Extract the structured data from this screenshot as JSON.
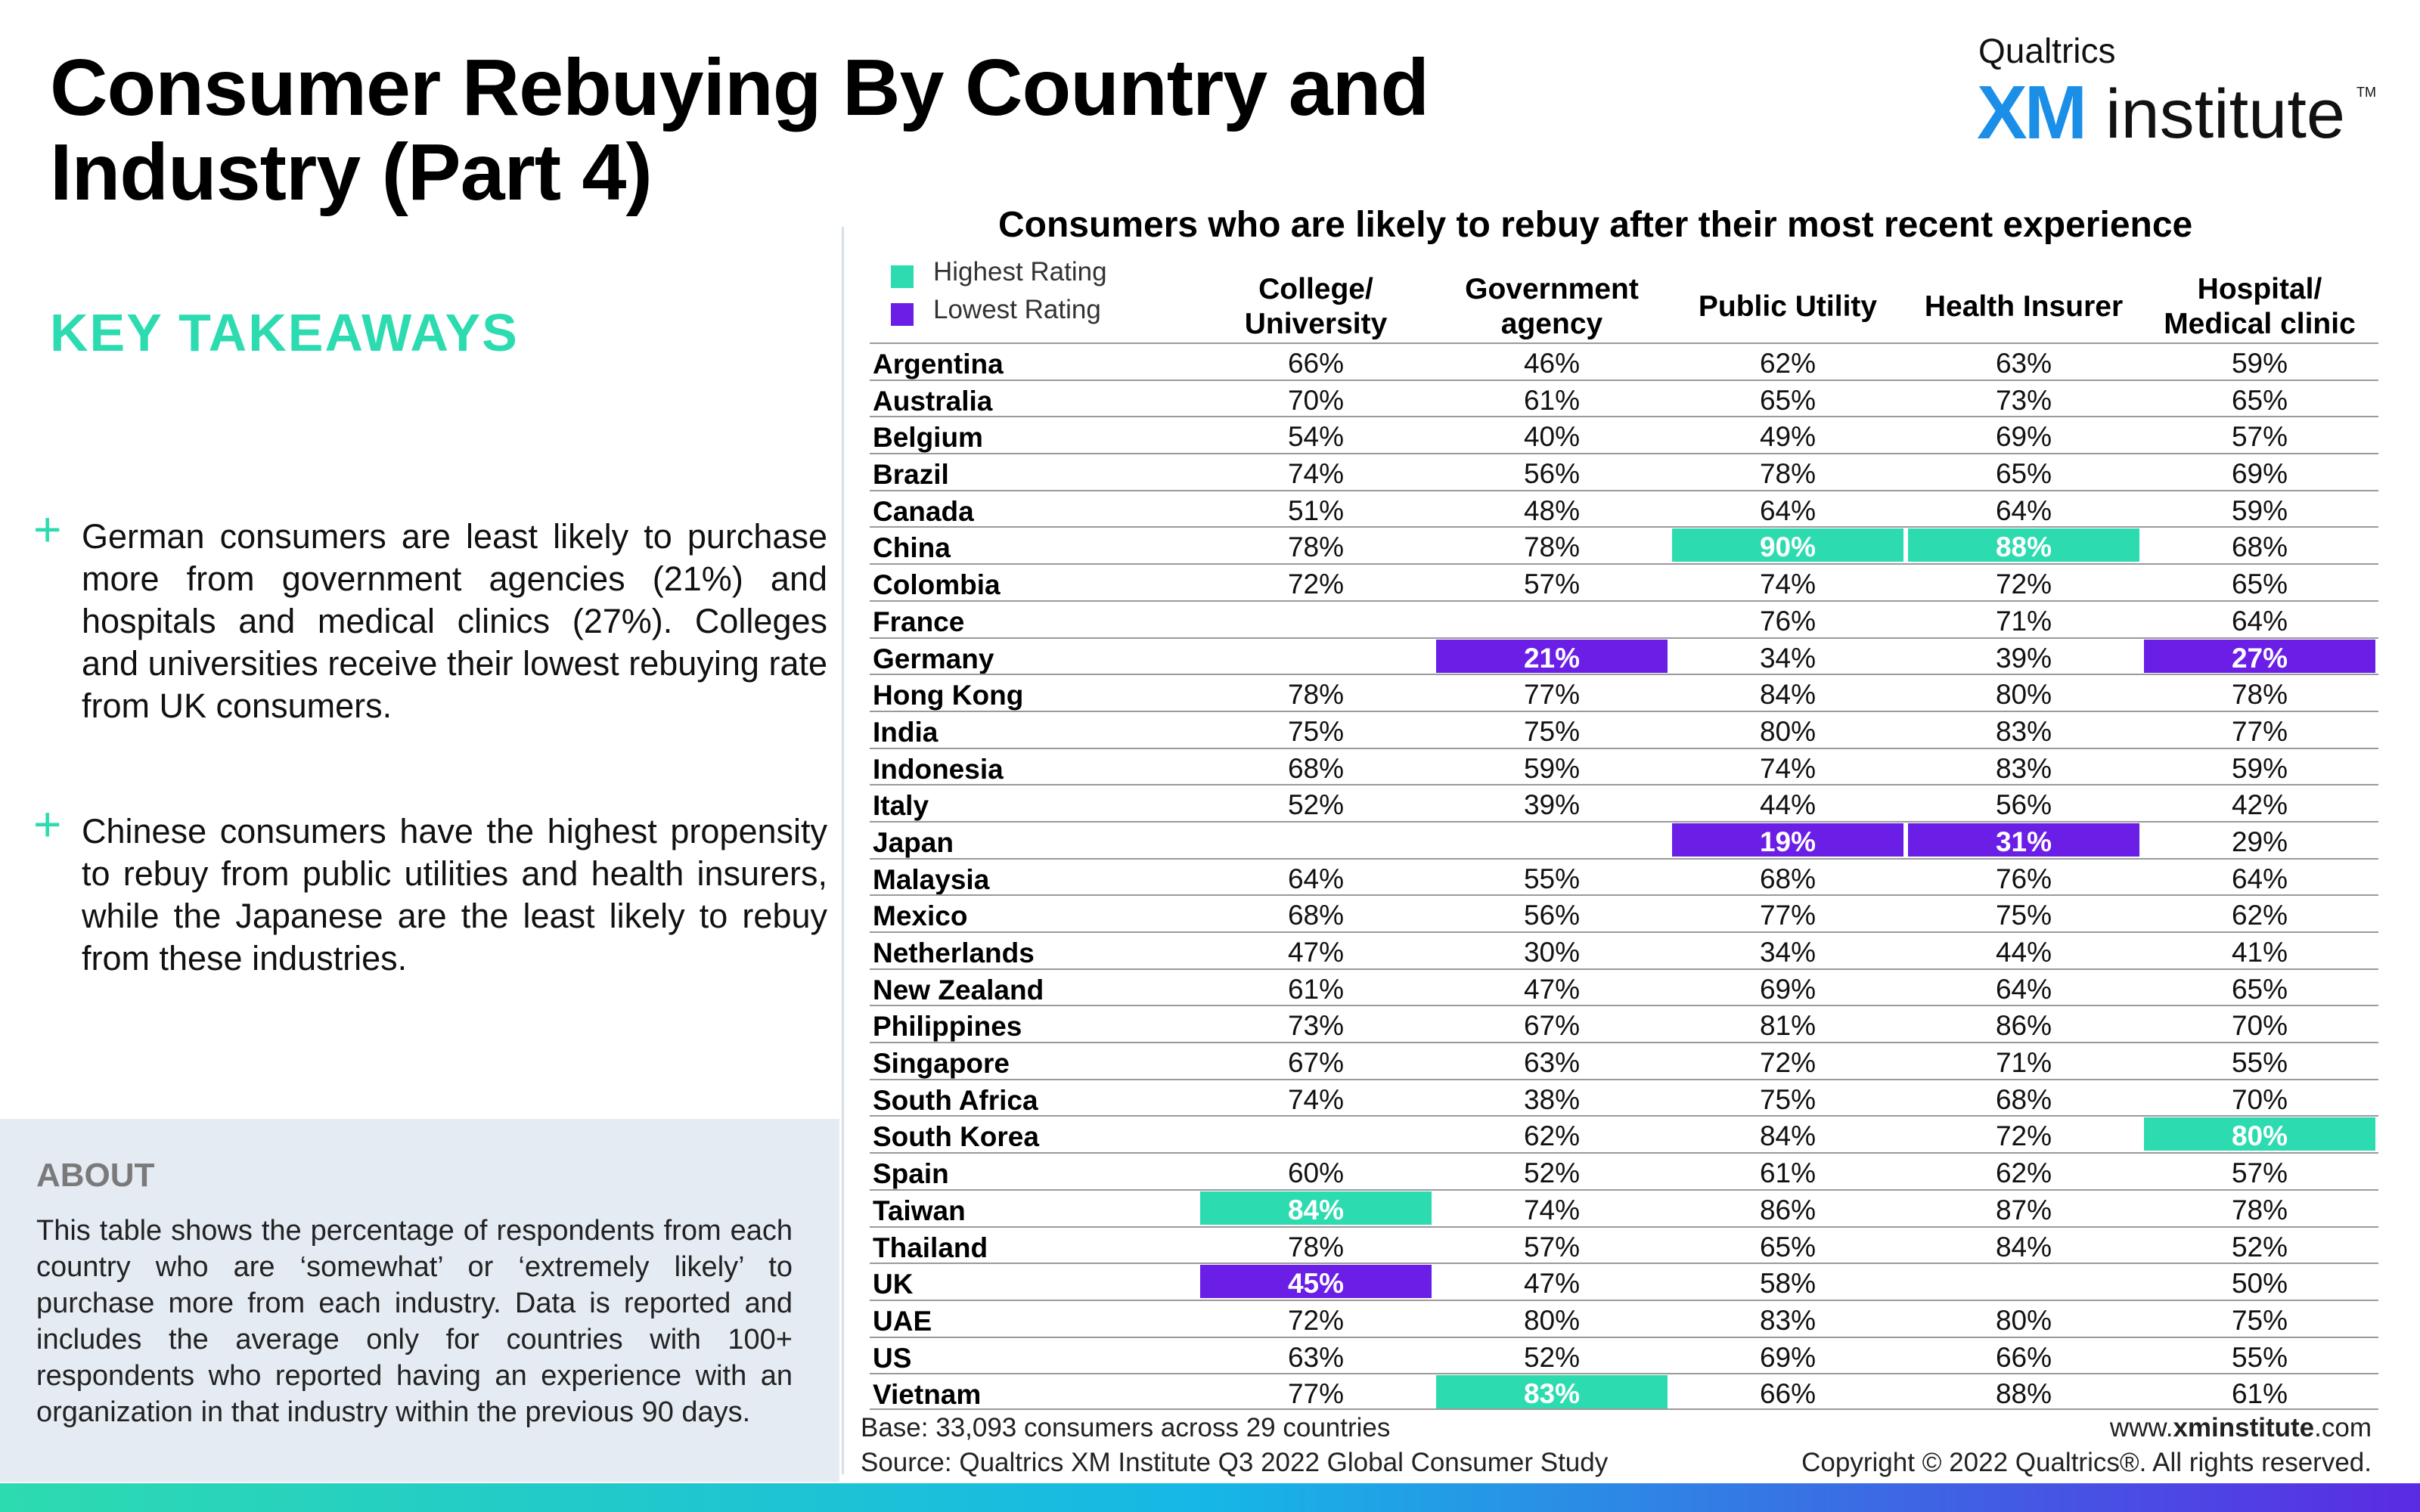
{
  "title": "Consumer Rebuying By Country and Industry (Part 4)",
  "logo": {
    "top": "Qualtrics",
    "xm": "XM",
    "institute": "institute",
    "tm": "TM"
  },
  "takeaways": {
    "heading": "KEY TAKEAWAYS",
    "bullets": [
      "German consumers are least likely to purchase more from government agencies (21%) and hospitals and medical clinics (27%). Colleges and universities receive their lowest rebuying rate from UK consumers.",
      "Chinese consumers have the highest propensity to rebuy from public utilities and health insurers, while the Japanese are the least likely to rebuy from these industries."
    ]
  },
  "about": {
    "heading": "ABOUT",
    "text": "This table shows the percentage of respondents from each country who are ‘somewhat’ or ‘extremely likely’ to purchase more from each industry. Data is reported and includes the average only for countries with 100+ respondents who reported having an experience with an organization in that industry within the previous 90 days."
  },
  "table": {
    "title": "Consumers who are likely to rebuy after their most recent experience",
    "legend": [
      {
        "label": "Highest Rating",
        "color": "#2ddbb0"
      },
      {
        "label": "Lowest Rating",
        "color": "#6a1ee6"
      }
    ],
    "columns": [
      "College/ University",
      "Government agency",
      "Public Utility",
      "Health Insurer",
      "Hospital/ Medical clinic"
    ],
    "rows": [
      {
        "country": "Argentina",
        "values": [
          "66%",
          "46%",
          "62%",
          "63%",
          "59%"
        ],
        "hl": [
          "",
          "",
          "",
          "",
          ""
        ]
      },
      {
        "country": "Australia",
        "values": [
          "70%",
          "61%",
          "65%",
          "73%",
          "65%"
        ],
        "hl": [
          "",
          "",
          "",
          "",
          ""
        ]
      },
      {
        "country": "Belgium",
        "values": [
          "54%",
          "40%",
          "49%",
          "69%",
          "57%"
        ],
        "hl": [
          "",
          "",
          "",
          "",
          ""
        ]
      },
      {
        "country": "Brazil",
        "values": [
          "74%",
          "56%",
          "78%",
          "65%",
          "69%"
        ],
        "hl": [
          "",
          "",
          "",
          "",
          ""
        ]
      },
      {
        "country": "Canada",
        "values": [
          "51%",
          "48%",
          "64%",
          "64%",
          "59%"
        ],
        "hl": [
          "",
          "",
          "",
          "",
          ""
        ]
      },
      {
        "country": "China",
        "values": [
          "78%",
          "78%",
          "90%",
          "88%",
          "68%"
        ],
        "hl": [
          "",
          "",
          "hi",
          "hi",
          ""
        ]
      },
      {
        "country": "Colombia",
        "values": [
          "72%",
          "57%",
          "74%",
          "72%",
          "65%"
        ],
        "hl": [
          "",
          "",
          "",
          "",
          ""
        ]
      },
      {
        "country": "France",
        "values": [
          "",
          "",
          "76%",
          "71%",
          "64%"
        ],
        "hl": [
          "",
          "",
          "",
          "",
          ""
        ]
      },
      {
        "country": "Germany",
        "values": [
          "",
          "21%",
          "34%",
          "39%",
          "27%"
        ],
        "hl": [
          "",
          "lo",
          "",
          "",
          "lo"
        ]
      },
      {
        "country": "Hong Kong",
        "values": [
          "78%",
          "77%",
          "84%",
          "80%",
          "78%"
        ],
        "hl": [
          "",
          "",
          "",
          "",
          ""
        ]
      },
      {
        "country": "India",
        "values": [
          "75%",
          "75%",
          "80%",
          "83%",
          "77%"
        ],
        "hl": [
          "",
          "",
          "",
          "",
          ""
        ]
      },
      {
        "country": "Indonesia",
        "values": [
          "68%",
          "59%",
          "74%",
          "83%",
          "59%"
        ],
        "hl": [
          "",
          "",
          "",
          "",
          ""
        ]
      },
      {
        "country": "Italy",
        "values": [
          "52%",
          "39%",
          "44%",
          "56%",
          "42%"
        ],
        "hl": [
          "",
          "",
          "",
          "",
          ""
        ]
      },
      {
        "country": "Japan",
        "values": [
          "",
          "",
          "19%",
          "31%",
          "29%"
        ],
        "hl": [
          "",
          "",
          "lo",
          "lo",
          ""
        ]
      },
      {
        "country": "Malaysia",
        "values": [
          "64%",
          "55%",
          "68%",
          "76%",
          "64%"
        ],
        "hl": [
          "",
          "",
          "",
          "",
          ""
        ]
      },
      {
        "country": "Mexico",
        "values": [
          "68%",
          "56%",
          "77%",
          "75%",
          "62%"
        ],
        "hl": [
          "",
          "",
          "",
          "",
          ""
        ]
      },
      {
        "country": "Netherlands",
        "values": [
          "47%",
          "30%",
          "34%",
          "44%",
          "41%"
        ],
        "hl": [
          "",
          "",
          "",
          "",
          ""
        ]
      },
      {
        "country": "New Zealand",
        "values": [
          "61%",
          "47%",
          "69%",
          "64%",
          "65%"
        ],
        "hl": [
          "",
          "",
          "",
          "",
          ""
        ]
      },
      {
        "country": "Philippines",
        "values": [
          "73%",
          "67%",
          "81%",
          "86%",
          "70%"
        ],
        "hl": [
          "",
          "",
          "",
          "",
          ""
        ]
      },
      {
        "country": "Singapore",
        "values": [
          "67%",
          "63%",
          "72%",
          "71%",
          "55%"
        ],
        "hl": [
          "",
          "",
          "",
          "",
          ""
        ]
      },
      {
        "country": "South Africa",
        "values": [
          "74%",
          "38%",
          "75%",
          "68%",
          "70%"
        ],
        "hl": [
          "",
          "",
          "",
          "",
          ""
        ]
      },
      {
        "country": "South Korea",
        "values": [
          "",
          "62%",
          "84%",
          "72%",
          "80%"
        ],
        "hl": [
          "",
          "",
          "",
          "",
          "hi"
        ]
      },
      {
        "country": "Spain",
        "values": [
          "60%",
          "52%",
          "61%",
          "62%",
          "57%"
        ],
        "hl": [
          "",
          "",
          "",
          "",
          ""
        ]
      },
      {
        "country": "Taiwan",
        "values": [
          "84%",
          "74%",
          "86%",
          "87%",
          "78%"
        ],
        "hl": [
          "hi",
          "",
          "",
          "",
          ""
        ]
      },
      {
        "country": "Thailand",
        "values": [
          "78%",
          "57%",
          "65%",
          "84%",
          "52%"
        ],
        "hl": [
          "",
          "",
          "",
          "",
          ""
        ]
      },
      {
        "country": "UK",
        "values": [
          "45%",
          "47%",
          "58%",
          "",
          "50%"
        ],
        "hl": [
          "lo",
          "",
          "",
          "",
          ""
        ]
      },
      {
        "country": "UAE",
        "values": [
          "72%",
          "80%",
          "83%",
          "80%",
          "75%"
        ],
        "hl": [
          "",
          "",
          "",
          "",
          ""
        ]
      },
      {
        "country": "US",
        "values": [
          "63%",
          "52%",
          "69%",
          "66%",
          "55%"
        ],
        "hl": [
          "",
          "",
          "",
          "",
          ""
        ]
      },
      {
        "country": "Vietnam",
        "values": [
          "77%",
          "83%",
          "66%",
          "88%",
          "61%"
        ],
        "hl": [
          "",
          "hi",
          "",
          "",
          ""
        ]
      }
    ]
  },
  "footer": {
    "base": "Base: 33,093 consumers across 29 countries",
    "source": "Source: Qualtrics XM Institute Q3 2022 Global Consumer Study",
    "url_prefix": "www.",
    "url_bold": "xminstitute",
    "url_suffix": ".com",
    "copyright": "Copyright © 2022 Qualtrics®. All rights reserved."
  }
}
